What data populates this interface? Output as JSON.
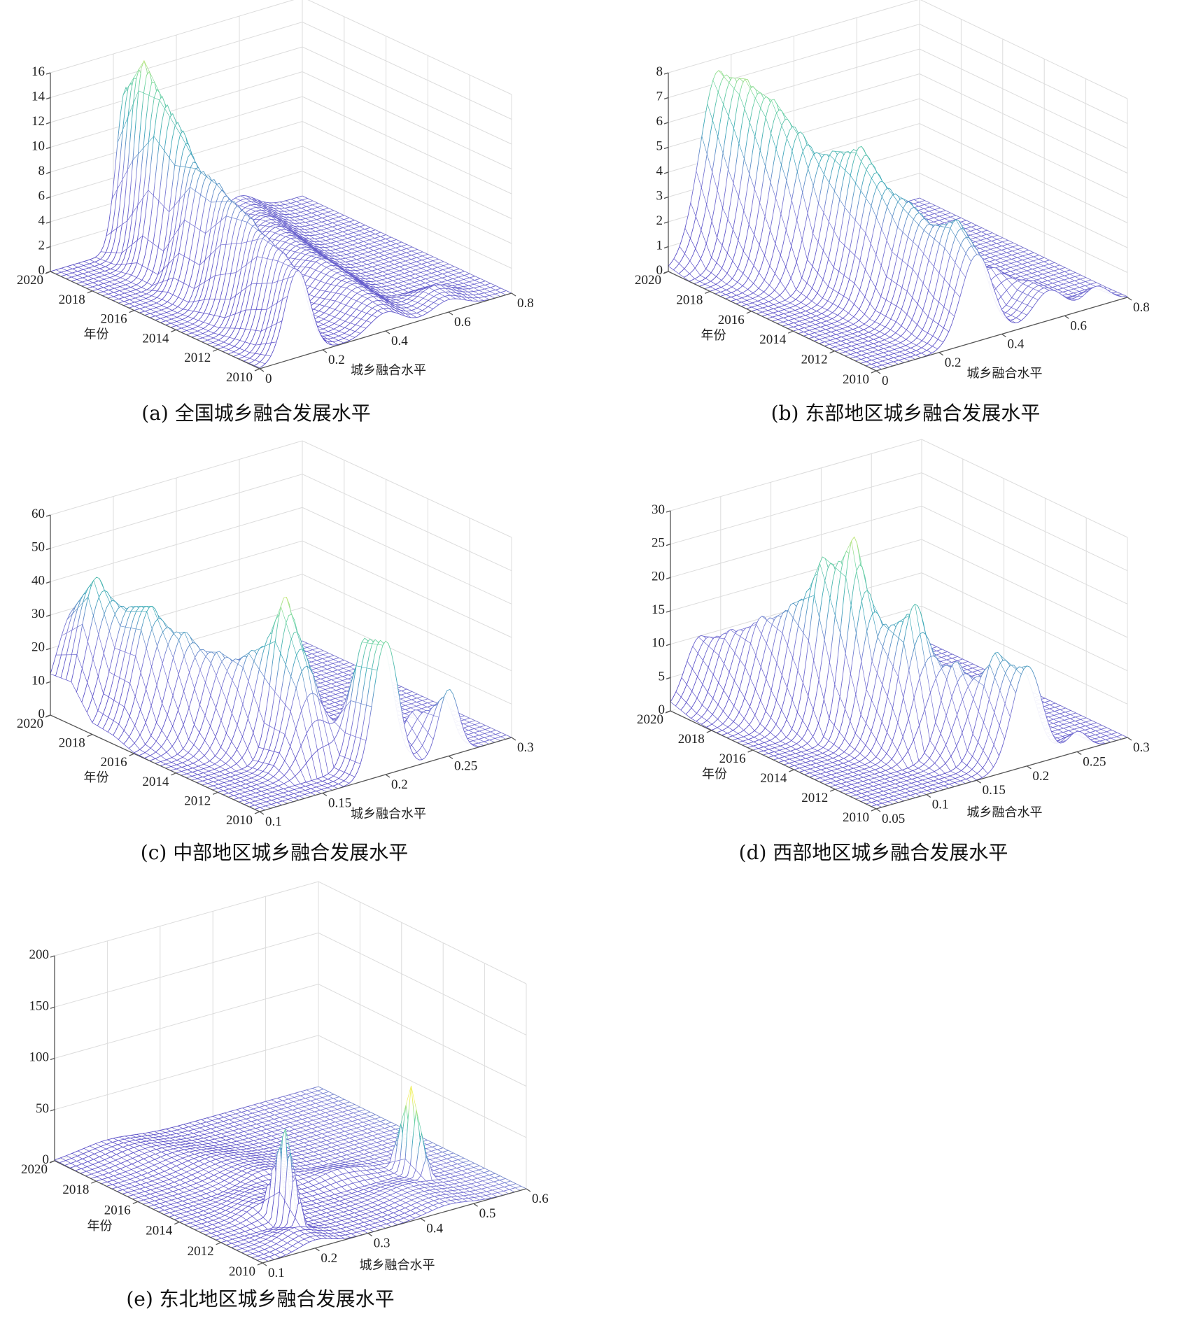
{
  "chart_data": [
    {
      "id": "a",
      "type": "surface",
      "caption": "(a) 全国城乡融合发展水平",
      "xlabel": "城乡融合水平",
      "ylabel": "年份",
      "xlim": [
        0,
        0.8
      ],
      "ylim": [
        2010,
        2020
      ],
      "zlim": [
        0,
        16
      ],
      "xticks": [
        "0",
        "0.2",
        "0.4",
        "0.6",
        "0.8"
      ],
      "yticks": [
        "2010",
        "2012",
        "2014",
        "2016",
        "2018",
        "2020"
      ],
      "zticks": [
        "0",
        "2",
        "4",
        "6",
        "8",
        "10",
        "12",
        "14",
        "16"
      ],
      "years": [
        2010,
        2011,
        2012,
        2013,
        2014,
        2015,
        2016,
        2017,
        2018,
        2019,
        2020
      ],
      "density_peaks": [
        [
          [
            0.12,
            7,
            0.04
          ],
          [
            0.4,
            1.5,
            0.05
          ],
          [
            0.6,
            1.0,
            0.05
          ]
        ],
        [
          [
            0.14,
            7.5,
            0.04
          ],
          [
            0.42,
            1.8,
            0.05
          ],
          [
            0.62,
            1.2,
            0.05
          ]
        ],
        [
          [
            0.15,
            8,
            0.04
          ],
          [
            0.43,
            2,
            0.05
          ]
        ],
        [
          [
            0.17,
            8.5,
            0.04
          ],
          [
            0.45,
            2,
            0.05
          ]
        ],
        [
          [
            0.18,
            9,
            0.04
          ],
          [
            0.46,
            2.2,
            0.05
          ]
        ],
        [
          [
            0.2,
            9.5,
            0.04
          ],
          [
            0.48,
            2,
            0.05
          ]
        ],
        [
          [
            0.2,
            10,
            0.04
          ],
          [
            0.5,
            2,
            0.05
          ]
        ],
        [
          [
            0.22,
            12,
            0.035
          ],
          [
            0.52,
            2,
            0.05
          ]
        ],
        [
          [
            0.22,
            14,
            0.035
          ],
          [
            0.55,
            1.8,
            0.05
          ]
        ],
        [
          [
            0.23,
            16,
            0.03
          ],
          [
            0.58,
            1.5,
            0.05
          ]
        ],
        [
          [
            0.24,
            13,
            0.03
          ],
          [
            0.6,
            1.5,
            0.05
          ]
        ]
      ]
    },
    {
      "id": "b",
      "type": "surface",
      "caption": "(b) 东部地区城乡融合发展水平",
      "xlabel": "城乡融合水平",
      "ylabel": "年份",
      "xlim": [
        0,
        0.8
      ],
      "ylim": [
        2010,
        2020
      ],
      "zlim": [
        0,
        8
      ],
      "xticks": [
        "0",
        "0.2",
        "0.4",
        "0.6",
        "0.8"
      ],
      "yticks": [
        "2010",
        "2012",
        "2014",
        "2016",
        "2018",
        "2020"
      ],
      "zticks": [
        "0",
        "1",
        "2",
        "3",
        "4",
        "5",
        "6",
        "7",
        "8"
      ],
      "years": [
        2010,
        2011,
        2012,
        2013,
        2014,
        2015,
        2016,
        2017,
        2018,
        2019,
        2020
      ],
      "density_peaks": [
        [
          [
            0.32,
            3.5,
            0.05
          ],
          [
            0.55,
            1.2,
            0.05
          ],
          [
            0.7,
            0.8,
            0.04
          ]
        ],
        [
          [
            0.32,
            4.5,
            0.05
          ],
          [
            0.55,
            1.2,
            0.05
          ]
        ],
        [
          [
            0.3,
            4,
            0.05
          ],
          [
            0.5,
            1.5,
            0.05
          ]
        ],
        [
          [
            0.3,
            4.5,
            0.05
          ],
          [
            0.5,
            1.2,
            0.05
          ]
        ],
        [
          [
            0.28,
            5,
            0.05
          ],
          [
            0.48,
            1,
            0.05
          ]
        ],
        [
          [
            0.28,
            6,
            0.05
          ],
          [
            0.45,
            1,
            0.05
          ]
        ],
        [
          [
            0.26,
            5.5,
            0.05
          ]
        ],
        [
          [
            0.22,
            6,
            0.05
          ]
        ],
        [
          [
            0.2,
            7,
            0.05
          ]
        ],
        [
          [
            0.18,
            7.5,
            0.05
          ]
        ],
        [
          [
            0.16,
            7.5,
            0.06
          ]
        ]
      ]
    },
    {
      "id": "c",
      "type": "surface",
      "caption": "(c) 中部地区城乡融合发展水平",
      "xlabel": "城乡融合水平",
      "ylabel": "年份",
      "xlim": [
        0.1,
        0.3
      ],
      "ylim": [
        2010,
        2020
      ],
      "zlim": [
        0,
        60
      ],
      "xticks": [
        "0.1",
        "0.15",
        "0.2",
        "0.25",
        "0.3"
      ],
      "yticks": [
        "2010",
        "2012",
        "2014",
        "2016",
        "2018",
        "2020"
      ],
      "zticks": [
        "0",
        "10",
        "20",
        "30",
        "40",
        "50",
        "60"
      ],
      "years": [
        2010,
        2011,
        2012,
        2013,
        2014,
        2015,
        2016,
        2017,
        2018,
        2019,
        2020
      ],
      "density_peaks": [
        [
          [
            0.2,
            40,
            0.01
          ],
          [
            0.25,
            20,
            0.008
          ]
        ],
        [
          [
            0.2,
            38,
            0.01
          ],
          [
            0.24,
            12,
            0.01
          ]
        ],
        [
          [
            0.17,
            30,
            0.012
          ],
          [
            0.21,
            10,
            0.01
          ]
        ],
        [
          [
            0.17,
            48,
            0.01
          ]
        ],
        [
          [
            0.16,
            30,
            0.012
          ],
          [
            0.19,
            10,
            0.01
          ]
        ],
        [
          [
            0.15,
            28,
            0.012
          ]
        ],
        [
          [
            0.14,
            32,
            0.013
          ]
        ],
        [
          [
            0.13,
            38,
            0.013
          ],
          [
            0.17,
            15,
            0.01
          ]
        ],
        [
          [
            0.13,
            35,
            0.014
          ]
        ],
        [
          [
            0.12,
            42,
            0.013
          ]
        ],
        [
          [
            0.12,
            30,
            0.015
          ]
        ]
      ]
    },
    {
      "id": "d",
      "type": "surface",
      "caption": "(d) 西部地区城乡融合发展水平",
      "xlabel": "城乡融合水平",
      "ylabel": "年份",
      "xlim": [
        0.05,
        0.3
      ],
      "ylim": [
        2010,
        2020
      ],
      "zlim": [
        0,
        30
      ],
      "xticks": [
        "0.05",
        "0.1",
        "0.15",
        "0.2",
        "0.25",
        "0.3"
      ],
      "yticks": [
        "2010",
        "2012",
        "2014",
        "2016",
        "2018",
        "2020"
      ],
      "zticks": [
        "0",
        "5",
        "10",
        "15",
        "20",
        "25",
        "30"
      ],
      "years": [
        2010,
        2011,
        2012,
        2013,
        2014,
        2015,
        2016,
        2017,
        2018,
        2019,
        2020
      ],
      "density_peaks": [
        [
          [
            0.2,
            15,
            0.015
          ],
          [
            0.25,
            3,
            0.01
          ]
        ],
        [
          [
            0.19,
            16,
            0.015
          ]
        ],
        [
          [
            0.17,
            14,
            0.015
          ]
        ],
        [
          [
            0.15,
            22,
            0.015
          ]
        ],
        [
          [
            0.14,
            18,
            0.015
          ]
        ],
        [
          [
            0.13,
            30,
            0.012
          ]
        ],
        [
          [
            0.12,
            26,
            0.013
          ]
        ],
        [
          [
            0.11,
            18,
            0.014
          ]
        ],
        [
          [
            0.1,
            15,
            0.015
          ]
        ],
        [
          [
            0.09,
            12,
            0.015
          ]
        ],
        [
          [
            0.08,
            10,
            0.015
          ]
        ]
      ]
    },
    {
      "id": "e",
      "type": "surface",
      "caption": "(e) 东北地区城乡融合发展水平",
      "xlabel": "城乡融合水平",
      "ylabel": "年份",
      "xlim": [
        0.1,
        0.6
      ],
      "ylim": [
        2010,
        2020
      ],
      "zlim": [
        0,
        200
      ],
      "xticks": [
        "0.1",
        "0.2",
        "0.3",
        "0.4",
        "0.5",
        "0.6"
      ],
      "yticks": [
        "2010",
        "2012",
        "2014",
        "2016",
        "2018",
        "2020"
      ],
      "zticks": [
        "0",
        "50",
        "100",
        "150",
        "200"
      ],
      "years": [
        2010,
        2011,
        2012,
        2013,
        2014,
        2015,
        2016,
        2017,
        2018,
        2019,
        2020
      ],
      "density_peaks": [
        [
          [
            0.2,
            8,
            0.03
          ],
          [
            0.45,
            6,
            0.04
          ]
        ],
        [
          [
            0.2,
            10,
            0.03
          ],
          [
            0.45,
            6,
            0.04
          ]
        ],
        [
          [
            0.22,
            100,
            0.006
          ],
          [
            0.45,
            6,
            0.04
          ]
        ],
        [
          [
            0.22,
            12,
            0.03
          ],
          [
            0.5,
            85,
            0.006
          ]
        ],
        [
          [
            0.25,
            10,
            0.04
          ],
          [
            0.4,
            8,
            0.04
          ]
        ],
        [
          [
            0.3,
            12,
            0.04
          ]
        ],
        [
          [
            0.3,
            9,
            0.05
          ]
        ],
        [
          [
            0.28,
            8,
            0.05
          ]
        ],
        [
          [
            0.25,
            7,
            0.05
          ]
        ],
        [
          [
            0.22,
            7,
            0.05
          ]
        ],
        [
          [
            0.2,
            6,
            0.05
          ]
        ]
      ]
    }
  ],
  "colors": {
    "low": "#5a4fc8",
    "mid": "#3aa8b8",
    "high": "#f0f060",
    "grid": "#dcdcdc"
  }
}
